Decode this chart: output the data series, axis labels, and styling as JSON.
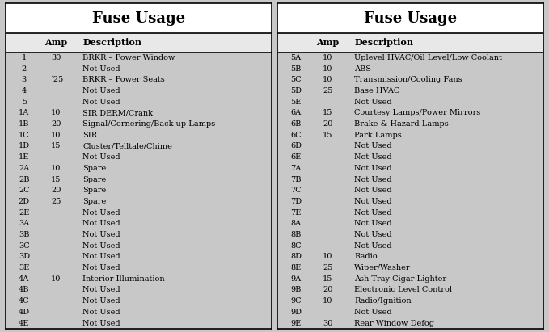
{
  "title": "Fuse Usage",
  "bg_color": "#c8c8c8",
  "table_bg": "#ffffff",
  "left_table": {
    "rows": [
      [
        "1",
        "30",
        "BRKR – Power Window"
      ],
      [
        "2",
        "",
        "Not Used"
      ],
      [
        "3",
        "´25",
        "BRKR – Power Seats"
      ],
      [
        "4",
        "",
        "Not Used"
      ],
      [
        "5",
        "",
        "Not Used"
      ],
      [
        "1A",
        "10",
        "SIR DERM/Crank"
      ],
      [
        "1B",
        "20",
        "Signal/Cornering/Back-up Lamps"
      ],
      [
        "1C",
        "10",
        "SIR"
      ],
      [
        "1D",
        "15",
        "Cluster/Telltale/Chime"
      ],
      [
        "1E",
        "",
        "Not Used"
      ],
      [
        "2A",
        "10",
        "Spare"
      ],
      [
        "2B",
        "15",
        "Spare"
      ],
      [
        "2C",
        "20",
        "Spare"
      ],
      [
        "2D",
        "25",
        "Spare"
      ],
      [
        "2E",
        "",
        "Not Used"
      ],
      [
        "3A",
        "",
        "Not Used"
      ],
      [
        "3B",
        "",
        "Not Used"
      ],
      [
        "3C",
        "",
        "Not Used"
      ],
      [
        "3D",
        "",
        "Not Used"
      ],
      [
        "3E",
        "",
        "Not Used"
      ],
      [
        "4A",
        "10",
        "Interior Illumination"
      ],
      [
        "4B",
        "",
        "Not Used"
      ],
      [
        "4C",
        "",
        "Not Used"
      ],
      [
        "4D",
        "",
        "Not Used"
      ],
      [
        "4E",
        "",
        "Not Used"
      ]
    ]
  },
  "right_table": {
    "rows": [
      [
        "5A",
        "10",
        "Uplevel HVAC/Oil Level/Low Coolant"
      ],
      [
        "5B",
        "10",
        "ABS"
      ],
      [
        "5C",
        "10",
        "Transmission/Cooling Fans"
      ],
      [
        "5D",
        "25",
        "Base HVAC"
      ],
      [
        "5E",
        "",
        "Not Used"
      ],
      [
        "6A",
        "15",
        "Courtesy Lamps/Power Mirrors"
      ],
      [
        "6B",
        "20",
        "Brake & Hazard Lamps"
      ],
      [
        "6C",
        "15",
        "Park Lamps"
      ],
      [
        "6D",
        "",
        "Not Used"
      ],
      [
        "6E",
        "",
        "Not Used"
      ],
      [
        "7A",
        "",
        "Not Used"
      ],
      [
        "7B",
        "",
        "Not Used"
      ],
      [
        "7C",
        "",
        "Not Used"
      ],
      [
        "7D",
        "",
        "Not Used"
      ],
      [
        "7E",
        "",
        "Not Used"
      ],
      [
        "8A",
        "",
        "Not Used"
      ],
      [
        "8B",
        "",
        "Not Used"
      ],
      [
        "8C",
        "",
        "Not Used"
      ],
      [
        "8D",
        "10",
        "Radio"
      ],
      [
        "8E",
        "25",
        "Wiper/Washer"
      ],
      [
        "9A",
        "15",
        "Ash Tray Cigar Lighter"
      ],
      [
        "9B",
        "20",
        "Electronic Level Control"
      ],
      [
        "9C",
        "10",
        "Radio/Ignition"
      ],
      [
        "9D",
        "",
        "Not Used"
      ],
      [
        "9E",
        "30",
        "Rear Window Defog"
      ]
    ]
  },
  "title_fontsize": 13,
  "header_fontsize": 8,
  "row_fontsize": 7,
  "figsize": [
    6.79,
    4.11
  ],
  "dpi": 100
}
